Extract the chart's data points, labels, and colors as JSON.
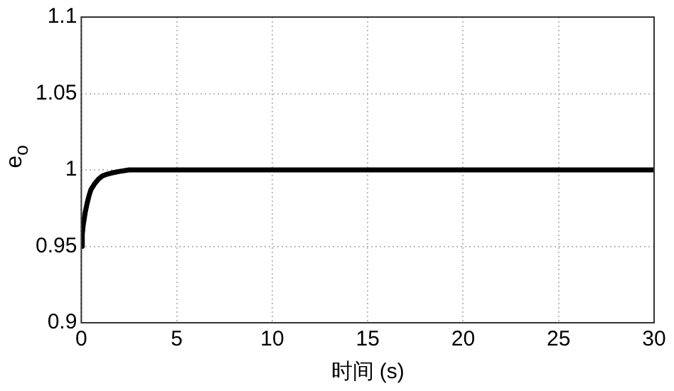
{
  "chart_data": {
    "type": "line",
    "xlabel": "时间 (s)",
    "ylabel": "e$_{o}$",
    "x": [
      0,
      0.05,
      0.1,
      0.2,
      0.3,
      0.4,
      0.5,
      0.7,
      0.9,
      1.1,
      1.3,
      1.6,
      2,
      2.5,
      3,
      3.5,
      4,
      5,
      6,
      8,
      10,
      15,
      20,
      25,
      30
    ],
    "series": [
      {
        "color": "#000000",
        "values": [
          0.95,
          0.958,
          0.964,
          0.972,
          0.978,
          0.983,
          0.987,
          0.991,
          0.994,
          0.996,
          0.997,
          0.998,
          0.999,
          1,
          1,
          1,
          1,
          1,
          1,
          1,
          1,
          1,
          1,
          1,
          1
        ]
      }
    ],
    "xlim": [
      0,
      30
    ],
    "xticks": [
      0,
      5,
      10,
      15,
      20,
      25,
      30
    ],
    "ylim": [
      0.9,
      1.1
    ],
    "yticks": [
      0.9,
      0.95,
      1,
      1.05,
      1.1
    ],
    "grid": true,
    "legend": false,
    "marker": "none",
    "line_style": "solid"
  }
}
